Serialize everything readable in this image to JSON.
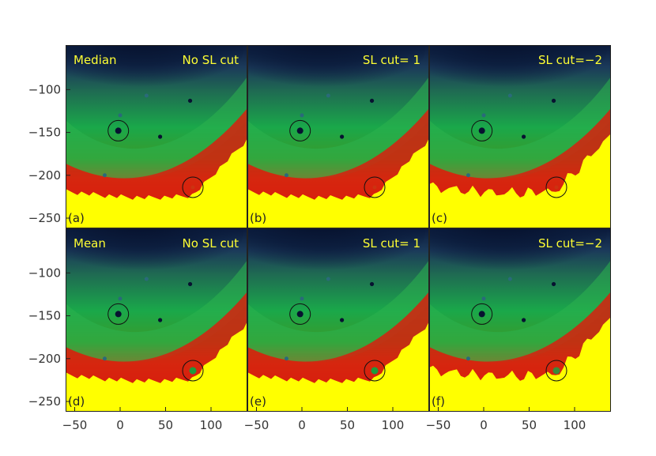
{
  "chart_data": {
    "type": "heatmap",
    "layout": "2 rows x 3 columns of image panels",
    "x_ticks": [
      "−50",
      "0",
      "50",
      "100"
    ],
    "x_tick_values": [
      -50,
      0,
      50,
      100
    ],
    "y_ticks": [
      "−100",
      "−150",
      "−200",
      "−250"
    ],
    "y_tick_values": [
      -100,
      -150,
      -200,
      -250
    ],
    "xlim": [
      -60,
      140
    ],
    "ylim": [
      -262,
      -48
    ],
    "colors": {
      "label_text": "#ffff33",
      "circle": "#111111",
      "frame": "#222222",
      "dark": "#0a1636",
      "green": "#1aa84a",
      "red": "#d41a0c",
      "yellow": "#ffff00"
    },
    "panels": [
      {
        "id": "a",
        "letter": "(a)",
        "title_left": "Median",
        "title_right": "No SL cut",
        "row": 0,
        "col": 0,
        "center_source_color": "#cc3311"
      },
      {
        "id": "b",
        "letter": "(b)",
        "title_left": "",
        "title_right": "SL cut= 1",
        "row": 0,
        "col": 1,
        "center_source_color": "#cc3311"
      },
      {
        "id": "c",
        "letter": "(c)",
        "title_left": "",
        "title_right": "SL cut=−2",
        "row": 0,
        "col": 2,
        "center_source_color": "#cc3311"
      },
      {
        "id": "d",
        "letter": "(d)",
        "title_left": "Mean",
        "title_right": "No SL cut",
        "row": 1,
        "col": 0,
        "center_source_color": "#1c9c3c"
      },
      {
        "id": "e",
        "letter": "(e)",
        "title_left": "",
        "title_right": "SL cut= 1",
        "row": 1,
        "col": 1,
        "center_source_color": "#1c9c3c"
      },
      {
        "id": "f",
        "letter": "(f)",
        "title_left": "",
        "title_right": "SL cut=−2",
        "row": 1,
        "col": 2,
        "center_source_color": "#3a8a3a"
      }
    ],
    "circled_sources": [
      {
        "x": -2,
        "y": -148
      },
      {
        "x": 80,
        "y": -214
      }
    ],
    "dark_sources": [
      {
        "x": 77,
        "y": -113
      },
      {
        "x": 44,
        "y": -155
      },
      {
        "x": -2,
        "y": -148
      }
    ],
    "faint_sources": [
      {
        "x": -17,
        "y": -200
      },
      {
        "x": 0,
        "y": -130
      },
      {
        "x": 29,
        "y": -107
      }
    ]
  }
}
